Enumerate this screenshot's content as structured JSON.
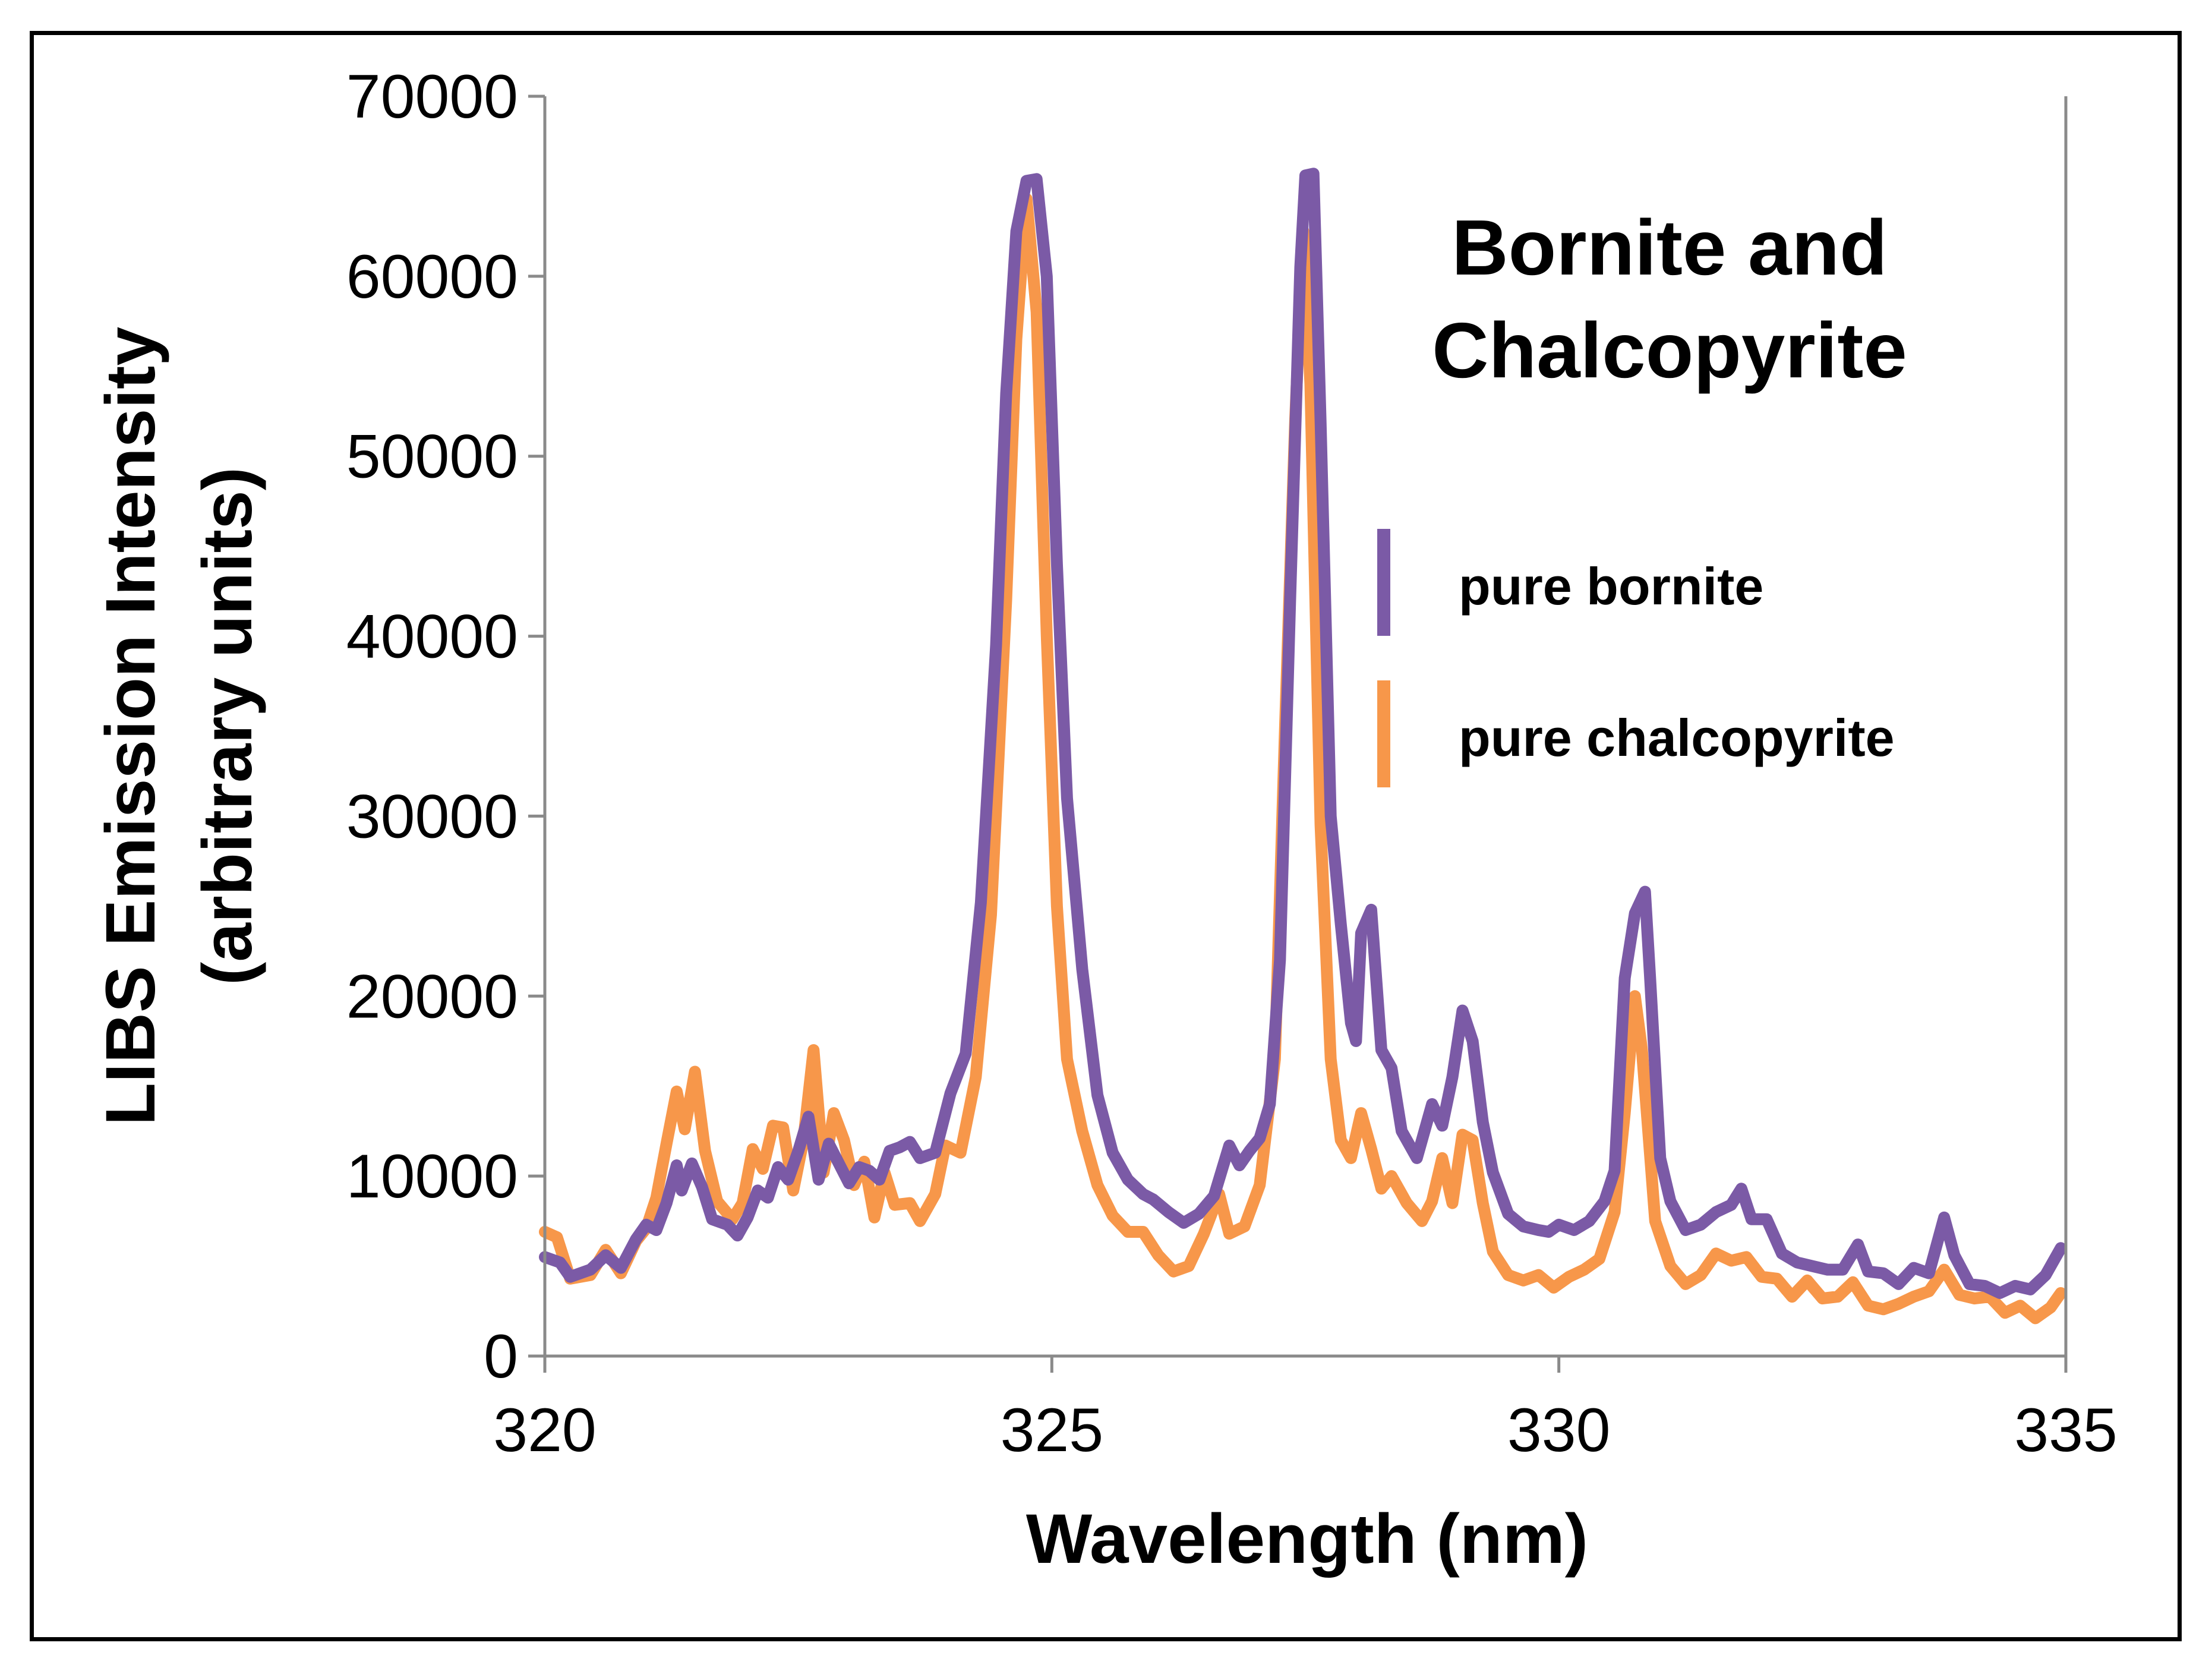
{
  "chart_data": {
    "type": "line",
    "title_lines": [
      "Bornite and",
      "Chalcopyrite"
    ],
    "xlabel": "Wavelength (nm)",
    "ylabel_lines": [
      "LIBS Emission Intensity",
      "(arbitrary units)"
    ],
    "xlim": [
      320,
      335
    ],
    "ylim": [
      0,
      70000
    ],
    "x_ticks": [
      320,
      325,
      330,
      335
    ],
    "x_tick_labels": [
      "320",
      "325",
      "330",
      "335"
    ],
    "y_ticks": [
      0,
      10000,
      20000,
      30000,
      40000,
      50000,
      60000,
      70000
    ],
    "y_tick_labels": [
      "0",
      "10000",
      "20000",
      "30000",
      "40000",
      "50000",
      "60000",
      "70000"
    ],
    "grid": false,
    "legend_position": "right",
    "series": [
      {
        "name": "pure bornite",
        "color": "#7B5AA6",
        "points": [
          [
            320.0,
            5500
          ],
          [
            320.15,
            5200
          ],
          [
            320.25,
            4400
          ],
          [
            320.45,
            4800
          ],
          [
            320.6,
            5600
          ],
          [
            320.75,
            4900
          ],
          [
            320.9,
            6500
          ],
          [
            321.0,
            7300
          ],
          [
            321.1,
            7000
          ],
          [
            321.2,
            8500
          ],
          [
            321.3,
            10600
          ],
          [
            321.35,
            9200
          ],
          [
            321.45,
            10700
          ],
          [
            321.55,
            9400
          ],
          [
            321.65,
            7600
          ],
          [
            321.8,
            7300
          ],
          [
            321.9,
            6700
          ],
          [
            322.0,
            7700
          ],
          [
            322.1,
            9200
          ],
          [
            322.2,
            8800
          ],
          [
            322.3,
            10500
          ],
          [
            322.4,
            9800
          ],
          [
            322.5,
            11400
          ],
          [
            322.6,
            13300
          ],
          [
            322.7,
            9800
          ],
          [
            322.8,
            11800
          ],
          [
            322.9,
            10700
          ],
          [
            323.0,
            9600
          ],
          [
            323.1,
            10500
          ],
          [
            323.2,
            10300
          ],
          [
            323.3,
            9800
          ],
          [
            323.4,
            11400
          ],
          [
            323.5,
            11600
          ],
          [
            323.6,
            11900
          ],
          [
            323.7,
            11000
          ],
          [
            323.85,
            11300
          ],
          [
            324.0,
            14600
          ],
          [
            324.15,
            16800
          ],
          [
            324.3,
            25200
          ],
          [
            324.45,
            39500
          ],
          [
            324.55,
            53500
          ],
          [
            324.65,
            62500
          ],
          [
            324.75,
            65300
          ],
          [
            324.85,
            65400
          ],
          [
            324.95,
            60000
          ],
          [
            325.05,
            44000
          ],
          [
            325.15,
            31000
          ],
          [
            325.3,
            21500
          ],
          [
            325.45,
            14500
          ],
          [
            325.6,
            11300
          ],
          [
            325.75,
            9800
          ],
          [
            325.9,
            9000
          ],
          [
            326.0,
            8700
          ],
          [
            326.15,
            8000
          ],
          [
            326.3,
            7400
          ],
          [
            326.45,
            7900
          ],
          [
            326.6,
            8900
          ],
          [
            326.75,
            11700
          ],
          [
            326.85,
            10600
          ],
          [
            326.95,
            11400
          ],
          [
            327.05,
            12100
          ],
          [
            327.15,
            14000
          ],
          [
            327.25,
            22000
          ],
          [
            327.35,
            42000
          ],
          [
            327.45,
            60500
          ],
          [
            327.5,
            65600
          ],
          [
            327.58,
            65700
          ],
          [
            327.65,
            52000
          ],
          [
            327.75,
            30000
          ],
          [
            327.85,
            24000
          ],
          [
            327.95,
            18500
          ],
          [
            328.0,
            17500
          ],
          [
            328.05,
            23500
          ],
          [
            328.15,
            24800
          ],
          [
            328.25,
            17000
          ],
          [
            328.35,
            16000
          ],
          [
            328.45,
            12500
          ],
          [
            328.6,
            11000
          ],
          [
            328.75,
            14000
          ],
          [
            328.85,
            12800
          ],
          [
            328.95,
            15500
          ],
          [
            329.05,
            19200
          ],
          [
            329.15,
            17500
          ],
          [
            329.25,
            13000
          ],
          [
            329.35,
            10200
          ],
          [
            329.5,
            7900
          ],
          [
            329.65,
            7200
          ],
          [
            329.8,
            7000
          ],
          [
            329.9,
            6900
          ],
          [
            330.0,
            7300
          ],
          [
            330.15,
            7000
          ],
          [
            330.3,
            7500
          ],
          [
            330.45,
            8600
          ],
          [
            330.55,
            10300
          ],
          [
            330.65,
            21000
          ],
          [
            330.75,
            24600
          ],
          [
            330.85,
            25800
          ],
          [
            330.9,
            21000
          ],
          [
            331.0,
            11000
          ],
          [
            331.1,
            8600
          ],
          [
            331.25,
            7000
          ],
          [
            331.4,
            7300
          ],
          [
            331.55,
            8000
          ],
          [
            331.7,
            8400
          ],
          [
            331.8,
            9300
          ],
          [
            331.9,
            7600
          ],
          [
            332.05,
            7600
          ],
          [
            332.2,
            5700
          ],
          [
            332.35,
            5200
          ],
          [
            332.5,
            5000
          ],
          [
            332.65,
            4800
          ],
          [
            332.8,
            4800
          ],
          [
            332.95,
            6200
          ],
          [
            333.05,
            4700
          ],
          [
            333.2,
            4600
          ],
          [
            333.35,
            4000
          ],
          [
            333.5,
            4900
          ],
          [
            333.65,
            4600
          ],
          [
            333.8,
            7700
          ],
          [
            333.9,
            5600
          ],
          [
            334.05,
            4000
          ],
          [
            334.2,
            3900
          ],
          [
            334.35,
            3500
          ],
          [
            334.5,
            3900
          ],
          [
            334.65,
            3700
          ],
          [
            334.8,
            4500
          ],
          [
            334.95,
            6000
          ]
        ]
      },
      {
        "name": "pure chalcopyrite",
        "color": "#F7974A",
        "points": [
          [
            320.0,
            6900
          ],
          [
            320.12,
            6600
          ],
          [
            320.25,
            4300
          ],
          [
            320.45,
            4500
          ],
          [
            320.6,
            5900
          ],
          [
            320.75,
            4600
          ],
          [
            320.9,
            6400
          ],
          [
            321.0,
            7100
          ],
          [
            321.1,
            8800
          ],
          [
            321.2,
            11800
          ],
          [
            321.3,
            14700
          ],
          [
            321.38,
            12600
          ],
          [
            321.48,
            15800
          ],
          [
            321.58,
            11400
          ],
          [
            321.7,
            8600
          ],
          [
            321.85,
            7600
          ],
          [
            321.95,
            8500
          ],
          [
            322.05,
            11500
          ],
          [
            322.15,
            10400
          ],
          [
            322.25,
            12800
          ],
          [
            322.35,
            12700
          ],
          [
            322.45,
            9200
          ],
          [
            322.55,
            12000
          ],
          [
            322.65,
            17000
          ],
          [
            322.75,
            10200
          ],
          [
            322.85,
            13500
          ],
          [
            322.95,
            12000
          ],
          [
            323.05,
            9500
          ],
          [
            323.15,
            10800
          ],
          [
            323.25,
            7700
          ],
          [
            323.35,
            10200
          ],
          [
            323.45,
            8400
          ],
          [
            323.6,
            8500
          ],
          [
            323.7,
            7500
          ],
          [
            323.85,
            9000
          ],
          [
            323.95,
            11700
          ],
          [
            324.1,
            11300
          ],
          [
            324.25,
            15500
          ],
          [
            324.4,
            24500
          ],
          [
            324.55,
            42000
          ],
          [
            324.65,
            56500
          ],
          [
            324.75,
            64300
          ],
          [
            324.85,
            58000
          ],
          [
            324.95,
            40000
          ],
          [
            325.05,
            25000
          ],
          [
            325.15,
            16500
          ],
          [
            325.3,
            12500
          ],
          [
            325.45,
            9500
          ],
          [
            325.6,
            7800
          ],
          [
            325.75,
            6900
          ],
          [
            325.9,
            6900
          ],
          [
            326.05,
            5600
          ],
          [
            326.2,
            4700
          ],
          [
            326.35,
            5000
          ],
          [
            326.5,
            6800
          ],
          [
            326.65,
            9000
          ],
          [
            326.75,
            6800
          ],
          [
            326.9,
            7200
          ],
          [
            327.05,
            9500
          ],
          [
            327.2,
            16500
          ],
          [
            327.3,
            35000
          ],
          [
            327.4,
            52000
          ],
          [
            327.48,
            62500
          ],
          [
            327.55,
            54000
          ],
          [
            327.65,
            29500
          ],
          [
            327.75,
            16500
          ],
          [
            327.85,
            12000
          ],
          [
            327.95,
            11000
          ],
          [
            328.05,
            13500
          ],
          [
            328.15,
            11500
          ],
          [
            328.25,
            9300
          ],
          [
            328.35,
            10000
          ],
          [
            328.5,
            8500
          ],
          [
            328.65,
            7500
          ],
          [
            328.75,
            8600
          ],
          [
            328.85,
            11000
          ],
          [
            328.95,
            8500
          ],
          [
            329.05,
            12300
          ],
          [
            329.15,
            12000
          ],
          [
            329.25,
            8500
          ],
          [
            329.35,
            5800
          ],
          [
            329.5,
            4500
          ],
          [
            329.65,
            4200
          ],
          [
            329.8,
            4500
          ],
          [
            329.95,
            3800
          ],
          [
            330.1,
            4400
          ],
          [
            330.25,
            4800
          ],
          [
            330.4,
            5400
          ],
          [
            330.55,
            8000
          ],
          [
            330.65,
            13500
          ],
          [
            330.75,
            20000
          ],
          [
            330.82,
            17000
          ],
          [
            330.95,
            7500
          ],
          [
            331.1,
            5000
          ],
          [
            331.25,
            4000
          ],
          [
            331.4,
            4500
          ],
          [
            331.55,
            5700
          ],
          [
            331.7,
            5300
          ],
          [
            331.85,
            5500
          ],
          [
            332.0,
            4400
          ],
          [
            332.15,
            4300
          ],
          [
            332.3,
            3300
          ],
          [
            332.45,
            4200
          ],
          [
            332.6,
            3200
          ],
          [
            332.75,
            3300
          ],
          [
            332.9,
            4100
          ],
          [
            333.05,
            2800
          ],
          [
            333.2,
            2600
          ],
          [
            333.35,
            2900
          ],
          [
            333.5,
            3300
          ],
          [
            333.65,
            3600
          ],
          [
            333.8,
            4800
          ],
          [
            333.95,
            3400
          ],
          [
            334.1,
            3200
          ],
          [
            334.25,
            3300
          ],
          [
            334.4,
            2400
          ],
          [
            334.55,
            2800
          ],
          [
            334.7,
            2100
          ],
          [
            334.85,
            2700
          ],
          [
            334.95,
            3500
          ]
        ]
      }
    ]
  }
}
